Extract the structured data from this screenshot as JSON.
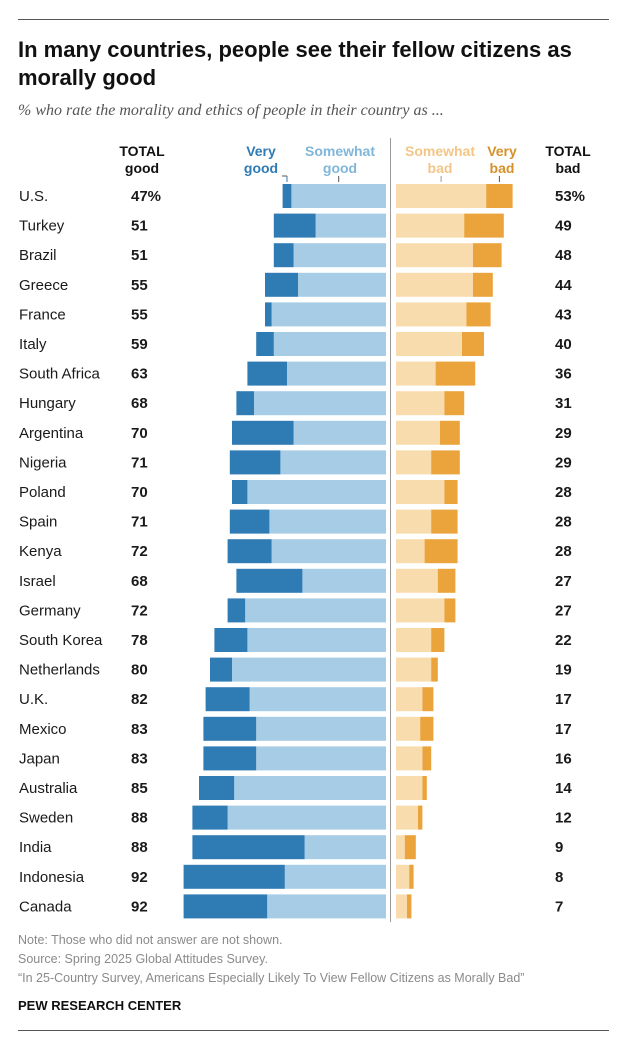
{
  "title": "In many countries, people see their fellow citizens as morally good",
  "subtitle": "% who rate the morality and ethics of people in their country as ...",
  "headers": {
    "total_good_line1": "TOTAL",
    "total_good_line2": "good",
    "very_good_line1": "Very",
    "very_good_line2": "good",
    "somewhat_good_line1": "Somewhat",
    "somewhat_good_line2": "good",
    "somewhat_bad_line1": "Somewhat",
    "somewhat_bad_line2": "bad",
    "very_bad_line1": "Very",
    "very_bad_line2": "bad",
    "total_bad_line1": "TOTAL",
    "total_bad_line2": "bad"
  },
  "colors": {
    "very_good": "#2f7bb4",
    "somewhat_good": "#a6cde5",
    "somewhat_bad": "#f8dcae",
    "very_bad": "#eba43c"
  },
  "chart_data": {
    "type": "bar",
    "orientation": "horizontal",
    "stacked": "diverging",
    "categories": [
      "U.S.",
      "Turkey",
      "Brazil",
      "Greece",
      "France",
      "Italy",
      "South Africa",
      "Hungary",
      "Argentina",
      "Nigeria",
      "Poland",
      "Spain",
      "Kenya",
      "Israel",
      "Germany",
      "South Korea",
      "Netherlands",
      "U.K.",
      "Mexico",
      "Japan",
      "Australia",
      "Sweden",
      "India",
      "Indonesia",
      "Canada"
    ],
    "series": [
      {
        "name": "Very good",
        "values": [
          4,
          19,
          9,
          15,
          3,
          8,
          18,
          8,
          28,
          23,
          7,
          18,
          20,
          30,
          8,
          15,
          10,
          20,
          24,
          24,
          16,
          16,
          51,
          46,
          38
        ]
      },
      {
        "name": "Somewhat good",
        "values": [
          43,
          32,
          42,
          40,
          52,
          51,
          45,
          60,
          42,
          48,
          63,
          53,
          52,
          38,
          64,
          63,
          70,
          62,
          59,
          59,
          69,
          72,
          37,
          46,
          54
        ]
      },
      {
        "name": "Somewhat bad",
        "values": [
          41,
          31,
          35,
          35,
          32,
          30,
          18,
          22,
          20,
          16,
          22,
          16,
          13,
          19,
          22,
          16,
          16,
          12,
          11,
          12,
          12,
          10,
          4,
          6,
          5
        ]
      },
      {
        "name": "Very bad",
        "values": [
          12,
          18,
          13,
          9,
          11,
          10,
          18,
          9,
          9,
          13,
          6,
          12,
          15,
          8,
          5,
          6,
          3,
          5,
          6,
          4,
          2,
          2,
          5,
          2,
          2
        ]
      }
    ],
    "total_good_labels": [
      "47%",
      "51",
      "51",
      "55",
      "55",
      "59",
      "63",
      "68",
      "70",
      "71",
      "70",
      "71",
      "72",
      "68",
      "72",
      "78",
      "80",
      "82",
      "83",
      "83",
      "85",
      "88",
      "88",
      "92",
      "92"
    ],
    "total_bad_labels": [
      "53%",
      "49",
      "48",
      "44",
      "43",
      "40",
      "36",
      "31",
      "29",
      "29",
      "28",
      "28",
      "28",
      "27",
      "27",
      "22",
      "19",
      "17",
      "17",
      "16",
      "14",
      "12",
      "9",
      "8",
      "7"
    ],
    "unit": "%"
  },
  "footer": {
    "note": "Note: Those who did not answer are not shown.",
    "source": "Source: Spring 2025 Global Attitudes Survey.",
    "report": "“In 25-Country Survey, Americans Especially Likely To View Fellow Citizens as Morally Bad”",
    "org": "PEW RESEARCH CENTER"
  }
}
